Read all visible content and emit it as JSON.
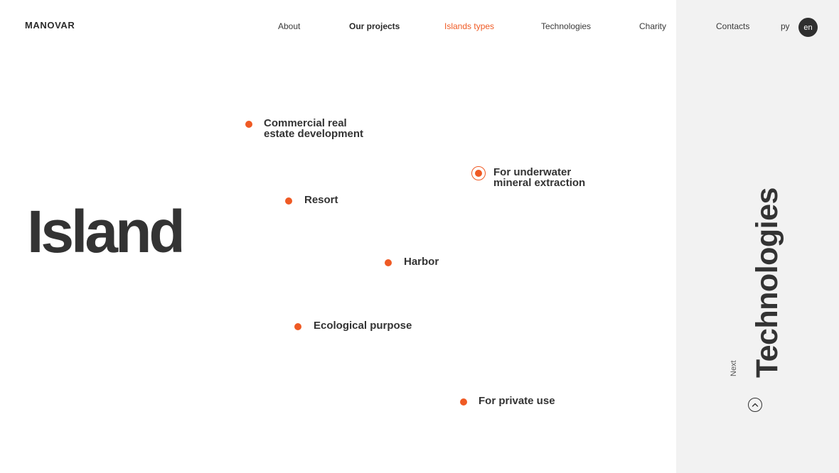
{
  "brand": {
    "logo": "MANOVAR"
  },
  "nav": {
    "items": [
      {
        "label": "About"
      },
      {
        "label": "Our projects"
      },
      {
        "label": "Islands types"
      },
      {
        "label": "Technologies"
      },
      {
        "label": "Charity"
      },
      {
        "label": "Contacts"
      }
    ],
    "active_item": "Islands types",
    "languages": [
      "ру",
      "en"
    ],
    "active_language": "en"
  },
  "hero": {
    "title": "Island"
  },
  "island_types": [
    {
      "label": "Commercial real\nestate development"
    },
    {
      "label": "For underwater\nmineral extraction",
      "selected": true
    },
    {
      "label": "Resort"
    },
    {
      "label": "Harbor"
    },
    {
      "label": "Ecological purpose"
    },
    {
      "label": "For private use"
    }
  ],
  "next_section": {
    "caption": "Next",
    "title": "Technologies",
    "icon": "chevron-up-icon"
  },
  "colors": {
    "accent": "#ef5a24",
    "text": "#333333",
    "panel": "#f2f2f2"
  }
}
